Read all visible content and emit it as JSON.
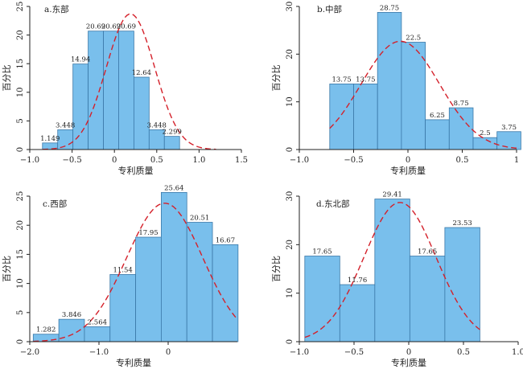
{
  "chart_data": [
    {
      "type": "bar",
      "title": "a.东部",
      "xlabel": "专利质量",
      "ylabel": "百分比",
      "xlim": [
        -1.0,
        1.5
      ],
      "ylim": [
        0,
        25
      ],
      "xticks": [
        -1.0,
        -0.5,
        0.0,
        0.5,
        1.0,
        1.5
      ],
      "xtick_labels": [
        "−1.0",
        "−0.5",
        "0",
        "0.5",
        "1.0",
        "1.5"
      ],
      "yticks": [
        0,
        5,
        10,
        15,
        20,
        25
      ],
      "ytick_labels": [
        "0",
        "5",
        "10",
        "15",
        "20",
        "25"
      ],
      "bins": [
        {
          "x0": -0.85,
          "x1": -0.67,
          "value": 1.149,
          "label": "1.149"
        },
        {
          "x0": -0.67,
          "x1": -0.49,
          "value": 3.448,
          "label": "3.448"
        },
        {
          "x0": -0.49,
          "x1": -0.31,
          "value": 14.94,
          "label": "14.94"
        },
        {
          "x0": -0.31,
          "x1": -0.13,
          "value": 20.69,
          "label": "20.69"
        },
        {
          "x0": -0.13,
          "x1": 0.05,
          "value": 20.69,
          "label": "20.69"
        },
        {
          "x0": 0.05,
          "x1": 0.23,
          "value": 20.69,
          "label": "20.69"
        },
        {
          "x0": 0.23,
          "x1": 0.41,
          "value": 12.64,
          "label": "12.64"
        },
        {
          "x0": 0.41,
          "x1": 0.59,
          "value": 3.448,
          "label": "3.448"
        },
        {
          "x0": 0.59,
          "x1": 0.77,
          "value": 2.299,
          "label": "2.299"
        }
      ],
      "curve": {
        "mean": 0.19,
        "sd": 0.285,
        "peak": 23.7,
        "x_from": -0.85,
        "x_to": 1.2
      }
    },
    {
      "type": "bar",
      "title": "b.中部",
      "xlabel": "专利质量",
      "ylabel": "百分比",
      "xlim": [
        -1.0,
        1.0
      ],
      "ylim": [
        0,
        30
      ],
      "xticks": [
        -1.0,
        -0.5,
        0.0,
        0.5,
        1.0
      ],
      "xtick_labels": [
        "−1.0",
        "−0.5",
        "0",
        "0.5",
        "1"
      ],
      "yticks": [
        0,
        10,
        20,
        30
      ],
      "ytick_labels": [
        "0",
        "10",
        "20",
        "30"
      ],
      "bins": [
        {
          "x0": -0.72,
          "x1": -0.5,
          "value": 13.75,
          "label": "13.75"
        },
        {
          "x0": -0.5,
          "x1": -0.28,
          "value": 13.75,
          "label": "13.75"
        },
        {
          "x0": -0.28,
          "x1": -0.06,
          "value": 28.75,
          "label": "28.75"
        },
        {
          "x0": -0.06,
          "x1": 0.16,
          "value": 22.5,
          "label": "22.5"
        },
        {
          "x0": 0.16,
          "x1": 0.38,
          "value": 6.25,
          "label": "6.25"
        },
        {
          "x0": 0.38,
          "x1": 0.6,
          "value": 8.75,
          "label": "8.75"
        },
        {
          "x0": 0.6,
          "x1": 0.82,
          "value": 2.5,
          "label": "2.5"
        },
        {
          "x0": 0.82,
          "x1": 1.04,
          "value": 3.75,
          "label": "3.75"
        }
      ],
      "curve": {
        "mean": -0.07,
        "sd": 0.36,
        "peak": 22.7,
        "x_from": -0.72,
        "x_to": 1.0
      }
    },
    {
      "type": "bar",
      "title": "c.西部",
      "xlabel": "专利质量",
      "ylabel": "百分比",
      "xlim": [
        -2.0,
        1.0
      ],
      "ylim": [
        0,
        25
      ],
      "xticks": [
        -2.0,
        -1.0,
        0.0
      ],
      "xtick_labels": [
        "−2.0",
        "−1.0",
        "0"
      ],
      "yticks": [
        0,
        5,
        10,
        15,
        20,
        25
      ],
      "ytick_labels": [
        "0",
        "5",
        "10",
        "15",
        "20",
        "25"
      ],
      "bins": [
        {
          "x0": -1.95,
          "x1": -1.58,
          "value": 1.282,
          "label": "1.282"
        },
        {
          "x0": -1.58,
          "x1": -1.21,
          "value": 3.846,
          "label": "3.846"
        },
        {
          "x0": -1.21,
          "x1": -0.84,
          "value": 2.564,
          "label": "2.564"
        },
        {
          "x0": -0.84,
          "x1": -0.47,
          "value": 11.54,
          "label": "11.54"
        },
        {
          "x0": -0.47,
          "x1": -0.1,
          "value": 17.95,
          "label": "17.95"
        },
        {
          "x0": -0.1,
          "x1": 0.27,
          "value": 25.64,
          "label": "25.64"
        },
        {
          "x0": 0.27,
          "x1": 0.64,
          "value": 20.51,
          "label": "20.51"
        },
        {
          "x0": 0.64,
          "x1": 1.01,
          "value": 16.67,
          "label": "16.67"
        }
      ],
      "curve": {
        "mean": -0.05,
        "sd": 0.55,
        "peak": 23.8,
        "x_from": -1.95,
        "x_to": 1.0
      }
    },
    {
      "type": "bar",
      "title": "d.东北部",
      "xlabel": "专利质量",
      "ylabel": "百分比",
      "xlim": [
        -1.0,
        1.0
      ],
      "ylim": [
        0,
        30
      ],
      "xticks": [
        -1.0,
        -0.5,
        0.0,
        0.5,
        1.0
      ],
      "xtick_labels": [
        "−1.0",
        "−0.5",
        "0",
        "0.5",
        "1.0"
      ],
      "yticks": [
        0,
        10,
        20,
        30
      ],
      "ytick_labels": [
        "0",
        "10",
        "20",
        "30"
      ],
      "bins": [
        {
          "x0": -0.95,
          "x1": -0.63,
          "value": 17.65,
          "label": "17.65"
        },
        {
          "x0": -0.63,
          "x1": -0.31,
          "value": 11.76,
          "label": "11.76"
        },
        {
          "x0": -0.31,
          "x1": 0.01,
          "value": 29.41,
          "label": "29.41"
        },
        {
          "x0": 0.01,
          "x1": 0.33,
          "value": 17.65,
          "label": "17.65"
        },
        {
          "x0": 0.33,
          "x1": 0.65,
          "value": 23.53,
          "label": "23.53"
        }
      ],
      "curve": {
        "mean": -0.08,
        "sd": 0.33,
        "peak": 28.7,
        "x_from": -0.95,
        "x_to": 0.65
      }
    }
  ]
}
